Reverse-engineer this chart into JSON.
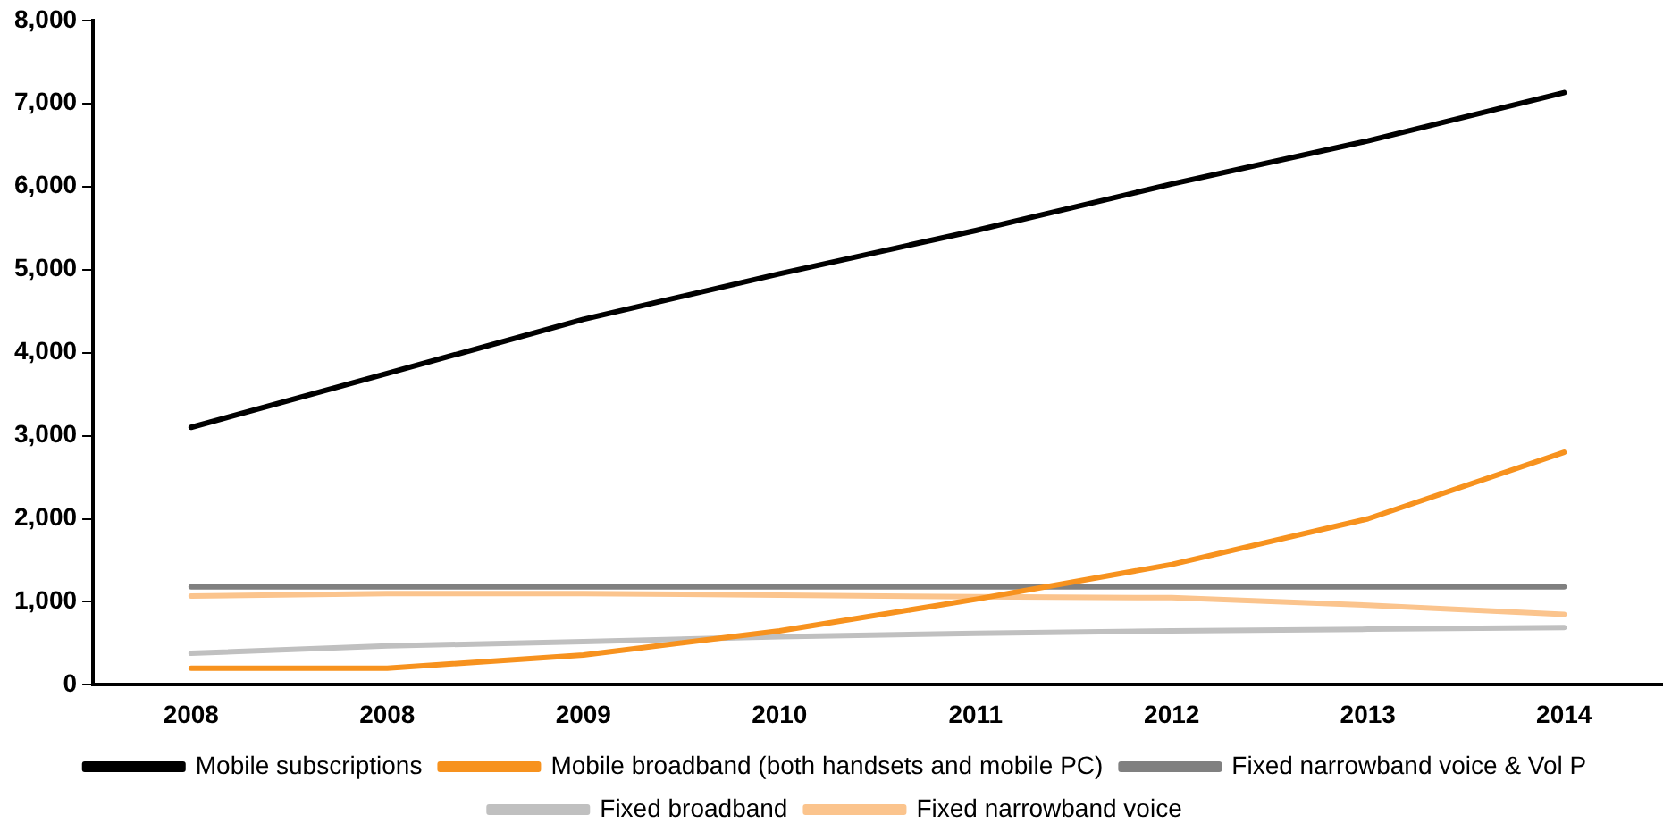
{
  "chart_data": {
    "type": "line",
    "categories": [
      "2008",
      "2008",
      "2009",
      "2010",
      "2011",
      "2012",
      "2013",
      "2014"
    ],
    "ylim": [
      0,
      8000
    ],
    "yticks": [
      0,
      {
        "value": 1000,
        "label": "1,000"
      },
      {
        "value": 2000,
        "label": "2,000"
      },
      {
        "value": 3000,
        "label": "3,000"
      },
      {
        "value": 4000,
        "label": "4,000"
      },
      {
        "value": 5000,
        "label": "5,000"
      },
      {
        "value": 6000,
        "label": "6,000"
      },
      {
        "value": 7000,
        "label": "7,000"
      },
      {
        "value": 8000,
        "label": "8,000"
      }
    ],
    "grid": false,
    "legend": "bottom",
    "marker": "none",
    "line_style": "solid",
    "series": [
      {
        "name": "Mobile subscriptions",
        "color": "#000000",
        "values": [
          3100,
          3750,
          4400,
          4950,
          5470,
          6030,
          6550,
          7130
        ]
      },
      {
        "name": "Mobile broadband (both handsets and mobile PC)",
        "color": "#f7921e",
        "values": [
          200,
          200,
          360,
          650,
          1030,
          1450,
          2000,
          2800
        ]
      },
      {
        "name": "Fixed narrowband voice & Vol P",
        "color": "#808080",
        "values": [
          1180,
          1180,
          1180,
          1180,
          1180,
          1180,
          1180,
          1180
        ]
      },
      {
        "name": "Fixed broadband",
        "color": "#c0c0c0",
        "values": [
          380,
          470,
          520,
          580,
          620,
          650,
          670,
          690
        ]
      },
      {
        "name": "Fixed narrowband voice",
        "color": "#fbc48d",
        "values": [
          1070,
          1100,
          1100,
          1080,
          1060,
          1050,
          960,
          850
        ]
      }
    ]
  }
}
